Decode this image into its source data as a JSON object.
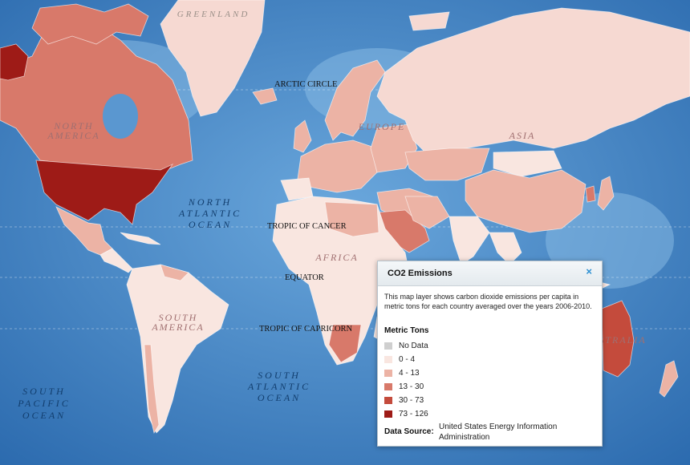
{
  "colors": {
    "ocean": "#3a7cc0",
    "ocean_light": "#7fb1dd",
    "no_data": "#cfcfcf",
    "class_0_4": "#f9e6e0",
    "class_4_13": "#ecb3a5",
    "class_13_30": "#d8796a",
    "class_30_73": "#c44b3c",
    "class_73_126": "#9e1b17"
  },
  "map_labels": {
    "greenland": "GREENLAND",
    "arctic_circle": "ARCTIC CIRCLE",
    "north_america_1": "NORTH",
    "north_america_2": "AMERICA",
    "europe": "EUROPE",
    "asia": "ASIA",
    "north_atlantic_1": "NORTH",
    "north_atlantic_2": "ATLANTIC",
    "north_atlantic_3": "OCEAN",
    "tropic_cancer": "TROPIC OF CANCER",
    "equator": "EQUATOR",
    "tropic_capricorn": "TROPIC OF CAPRICORN",
    "south_america_1": "SOUTH",
    "south_america_2": "AMERICA",
    "africa": "AFRICA",
    "south_atlantic_1": "SOUTH",
    "south_atlantic_2": "ATLANTIC",
    "south_atlantic_3": "OCEAN",
    "south_pacific_1": "SOUTH",
    "south_pacific_2": "PACIFIC",
    "south_pacific_3": "OCEAN",
    "australia": "AUSTRALIA"
  },
  "popup": {
    "title": "CO2 Emissions",
    "close_icon": "×",
    "description": "This map layer shows carbon dioxide emissions per capita in metric tons for each country averaged over the years 2006-2010.",
    "legend_title": "Metric Tons",
    "legend": [
      {
        "label": "No Data",
        "color": "#cfcfcf"
      },
      {
        "label": "0 - 4",
        "color": "#f9e6e0"
      },
      {
        "label": "4 - 13",
        "color": "#ecb3a5"
      },
      {
        "label": "13 - 30",
        "color": "#d8796a"
      },
      {
        "label": "30 - 73",
        "color": "#c44b3c"
      },
      {
        "label": "73 - 126",
        "color": "#9e1b17"
      }
    ],
    "source_label": "Data Source:",
    "source_value": "United States Energy Information Administration"
  }
}
